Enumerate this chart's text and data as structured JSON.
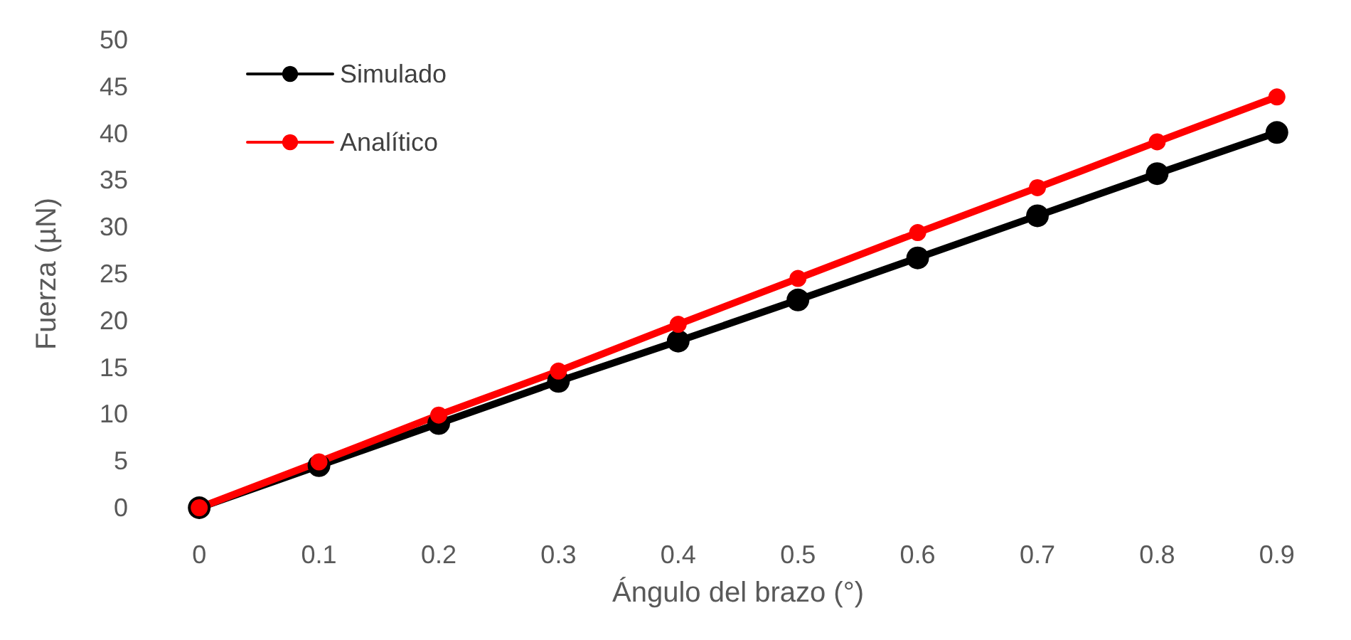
{
  "chart_data": {
    "type": "line",
    "xlabel": "Ángulo del brazo (°)",
    "ylabel": "Fuerza (µN)",
    "categories": [
      "0",
      "0.1",
      "0.2",
      "0.3",
      "0.4",
      "0.5",
      "0.6",
      "0.7",
      "0.8",
      "0.9"
    ],
    "series": [
      {
        "name": "Simulado",
        "color": "#000000",
        "values": [
          0,
          4.5,
          9.0,
          13.5,
          17.8,
          22.2,
          26.7,
          31.2,
          35.7,
          40.1
        ]
      },
      {
        "name": "Analítico",
        "color": "#ff0000",
        "values": [
          0,
          4.9,
          9.9,
          14.6,
          19.6,
          24.5,
          29.4,
          34.2,
          39.1,
          43.9
        ]
      }
    ],
    "ylim": [
      0,
      50
    ],
    "yticks": [
      0,
      5,
      10,
      15,
      20,
      25,
      30,
      35,
      40,
      45,
      50
    ],
    "grid": false,
    "legend": "top left",
    "marker": "circle",
    "line_style": "solid"
  }
}
